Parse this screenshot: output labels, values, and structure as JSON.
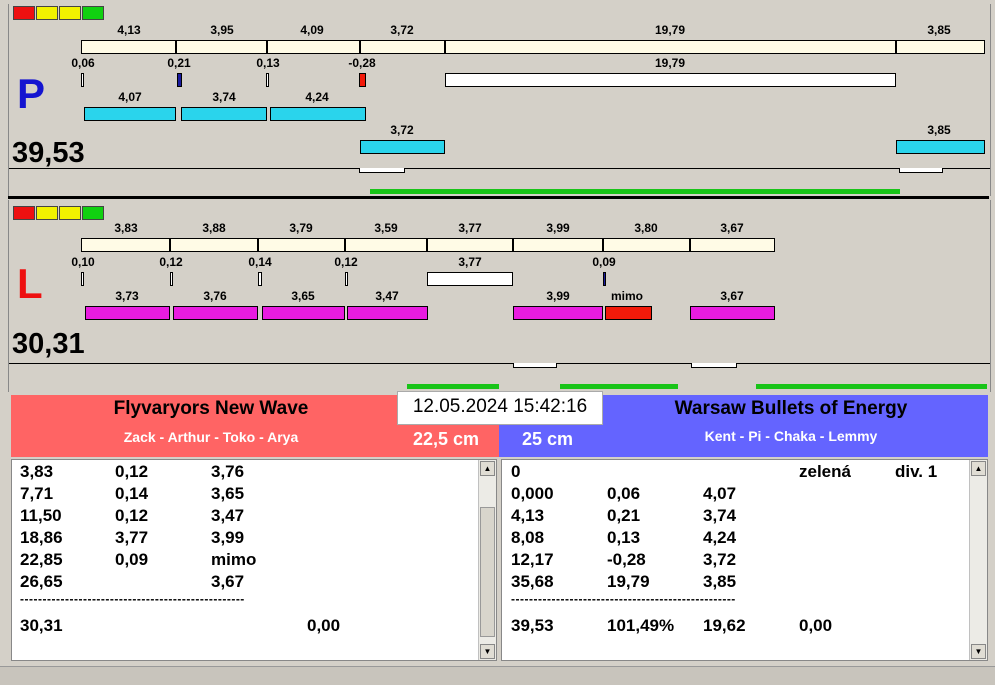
{
  "lane_p": {
    "letter": "P",
    "total": "39,53",
    "row1": [
      "4,13",
      "3,95",
      "4,09",
      "3,72",
      "19,79",
      "3,85"
    ],
    "row2": [
      "0,06",
      "0,21",
      "0,13",
      "-0,28",
      "19,79"
    ],
    "row3": [
      "4,07",
      "3,74",
      "4,24"
    ],
    "row4": [
      "3,72",
      "3,85"
    ]
  },
  "lane_l": {
    "letter": "L",
    "total": "30,31",
    "row1": [
      "3,83",
      "3,88",
      "3,79",
      "3,59",
      "3,77",
      "3,99",
      "3,80",
      "3,67"
    ],
    "row2": [
      "0,10",
      "0,12",
      "0,14",
      "0,12",
      "3,77",
      "0,09"
    ],
    "row3": [
      "3,73",
      "3,76",
      "3,65",
      "3,47",
      "3,99",
      "mimo",
      "3,67"
    ]
  },
  "datetime": "12.05.2024 15:42:16",
  "team_left": {
    "name": "Flyvaryors New Wave",
    "members": "Zack - Arthur - Toko - Arya",
    "distance": "22,5 cm",
    "color": "#ff6464"
  },
  "team_right": {
    "name": "Warsaw Bullets of Energy",
    "members": "Kent - Pi - Chaka - Lemmy",
    "distance": "25 cm",
    "color": "#6464ff"
  },
  "left_table": {
    "rows": [
      [
        "3,83",
        "0,12",
        "3,76"
      ],
      [
        "7,71",
        "0,14",
        "3,65"
      ],
      [
        "11,50",
        "0,12",
        "3,47"
      ],
      [
        "18,86",
        "3,77",
        "3,99"
      ],
      [
        "22,85",
        "0,09",
        "mimo"
      ],
      [
        "26,65",
        "",
        "3,67"
      ]
    ],
    "separator": "--------------------------------------------------",
    "summary": [
      "30,31",
      "0,00"
    ]
  },
  "right_table": {
    "header": [
      "0",
      "zelená",
      "div. 1"
    ],
    "rows": [
      [
        "0,000",
        "0,06",
        "4,07"
      ],
      [
        "4,13",
        "0,21",
        "3,74"
      ],
      [
        "8,08",
        "0,13",
        "4,24"
      ],
      [
        "12,17",
        "-0,28",
        "3,72"
      ],
      [
        "35,68",
        "19,79",
        "3,85"
      ]
    ],
    "separator": "--------------------------------------------------",
    "summary": [
      "39,53",
      "101,49%",
      "19,62",
      "0,00"
    ]
  },
  "colors": {
    "cyan": "#2ad4ec",
    "magenta": "#e81ce0",
    "red": "#f21a0a",
    "green": "#18c418",
    "cream": "#fffbe6"
  },
  "traffic_light": [
    "red",
    "yellow",
    "yellow",
    "green"
  ]
}
